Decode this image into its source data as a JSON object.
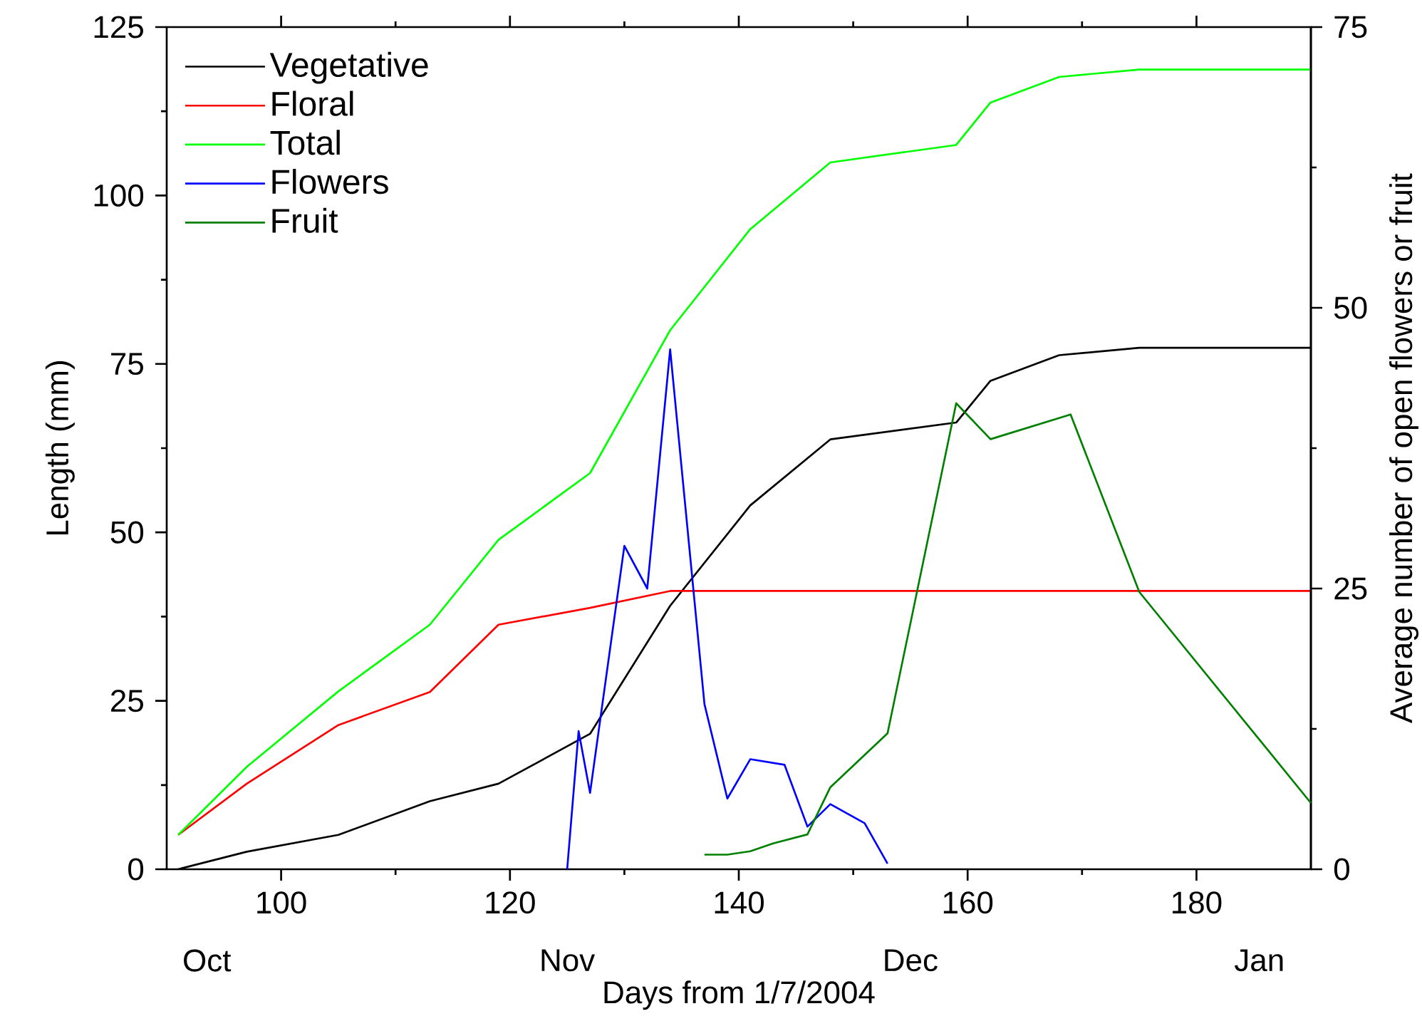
{
  "chart_data": {
    "type": "line",
    "xlabel": "Days from 1/7/2004",
    "ylabel": "Length (mm)",
    "y2label": "Average number of open flowers or fruit",
    "xlim": [
      90,
      190
    ],
    "xticks": [
      100,
      120,
      140,
      160,
      180
    ],
    "annotations": [
      "Oct",
      "Nov",
      "Dec",
      "Jan"
    ],
    "ylim": [
      0,
      125
    ],
    "yticks": [
      0,
      25,
      50,
      75,
      100,
      125
    ],
    "y2lim": [
      0,
      75
    ],
    "y2ticks": [
      0,
      25,
      50,
      75
    ],
    "legend": "top left",
    "line_style": "solid",
    "series": [
      {
        "name": "Vegetative",
        "color": "#000000",
        "x": [
          91,
          97,
          105,
          113,
          119,
          127,
          134,
          141,
          148,
          159,
          162,
          168,
          175,
          190
        ],
        "values": [
          0,
          2.6,
          5.1,
          10.1,
          12.7,
          20.1,
          39.1,
          54,
          63.8,
          66.3,
          72.5,
          76.3,
          77.4,
          77.4
        ]
      },
      {
        "name": "Floral",
        "color": "#ff0000",
        "x": [
          91,
          97,
          105,
          113,
          119,
          127,
          134,
          190
        ],
        "values": [
          5.1,
          12.7,
          21.4,
          26.3,
          36.3,
          38.8,
          41.3,
          41.3
        ]
      },
      {
        "name": "Total",
        "color": "#00ff00",
        "x": [
          91,
          97,
          105,
          113,
          119,
          127,
          134,
          141,
          148,
          159,
          162,
          168,
          175,
          190
        ],
        "values": [
          5.1,
          15.2,
          26.4,
          36.3,
          48.9,
          58.8,
          80,
          95,
          104.9,
          107.5,
          113.8,
          117.6,
          118.7,
          118.7
        ]
      },
      {
        "name": "Flowers",
        "color": "#0000ff",
        "axis": "y2",
        "x": [
          125,
          126,
          127,
          130,
          132,
          134,
          137,
          139,
          141,
          144,
          146,
          148,
          151,
          153
        ],
        "values": [
          0,
          12.3,
          6.8,
          28.8,
          25,
          46.3,
          14.7,
          6.3,
          9.8,
          9.3,
          3.8,
          5.8,
          4.1,
          0.5
        ]
      },
      {
        "name": "Fruit",
        "color": "#008000",
        "axis": "y2",
        "x": [
          137,
          139,
          141,
          143,
          146,
          148,
          153,
          159,
          162,
          169,
          175,
          190
        ],
        "values": [
          1.3,
          1.3,
          1.6,
          2.3,
          3.1,
          7.3,
          12.1,
          41.5,
          38.3,
          40.5,
          24.7,
          5.9
        ]
      }
    ]
  }
}
